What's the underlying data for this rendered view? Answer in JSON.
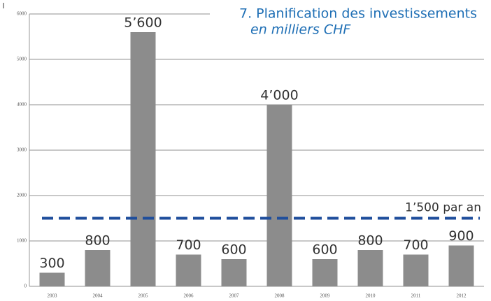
{
  "chart_data": {
    "type": "bar",
    "title": "7. Planification des investissements",
    "subtitle": "en milliers CHF",
    "categories": [
      "2003",
      "2004",
      "2005",
      "2006",
      "2007",
      "2008",
      "2009",
      "2010",
      "2011",
      "2012"
    ],
    "values": [
      300,
      800,
      5600,
      700,
      600,
      4000,
      600,
      800,
      700,
      900
    ],
    "value_labels": [
      "300",
      "800",
      "5’600",
      "700",
      "600",
      "4’000",
      "600",
      "800",
      "700",
      "900"
    ],
    "color": "#8c8c8c",
    "ylim": [
      0,
      6000
    ],
    "yticks": [
      0,
      1000,
      2000,
      3000,
      4000,
      5000,
      6000
    ],
    "grid": true,
    "reference_line": {
      "value": 1500,
      "label": "1’500 par an",
      "color": "#1f4e9c"
    }
  }
}
